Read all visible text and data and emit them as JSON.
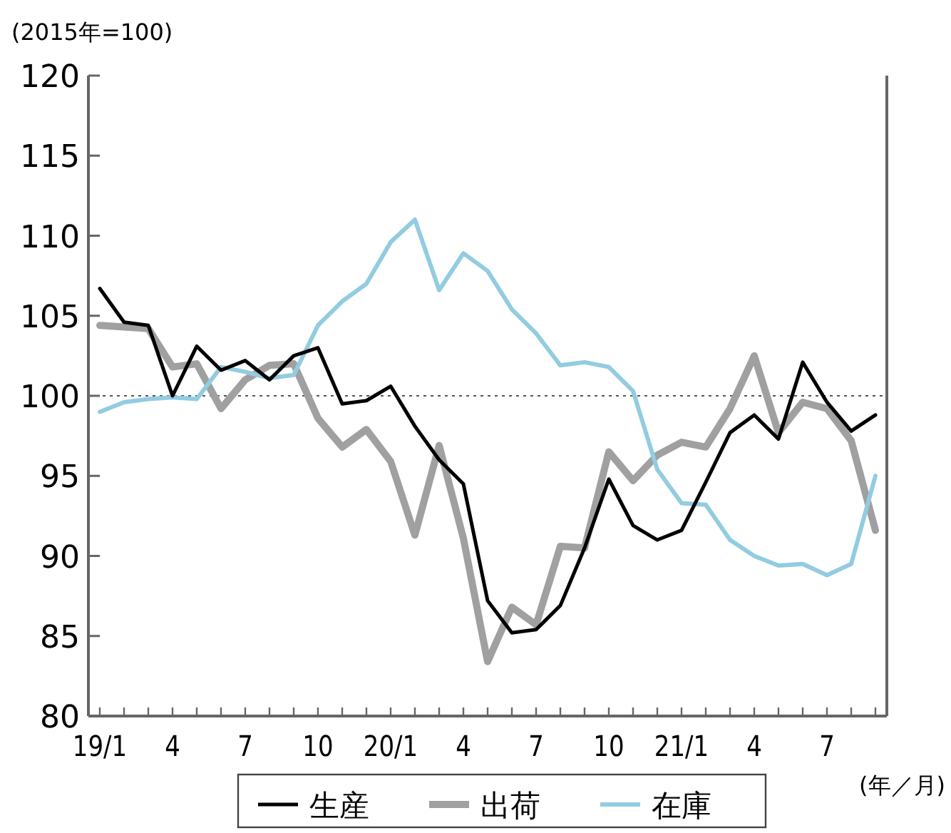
{
  "chart_data": {
    "type": "line",
    "ylabel": "(2015年=100)",
    "xlabel": "(年／月)",
    "categories": [
      "19/1",
      null,
      null,
      "4",
      null,
      null,
      "7",
      null,
      null,
      "10",
      null,
      null,
      "20/1",
      null,
      null,
      "4",
      null,
      null,
      "7",
      null,
      null,
      "10",
      null,
      null,
      "21/1",
      null,
      null,
      "4",
      null,
      null,
      "7",
      null,
      null
    ],
    "series": [
      {
        "name": "生産",
        "color": "#000000",
        "values": [
          106.7,
          104.6,
          104.4,
          100.0,
          103.1,
          101.6,
          102.2,
          101.0,
          102.5,
          103.0,
          99.5,
          99.7,
          100.6,
          98.1,
          96.0,
          94.5,
          87.2,
          85.2,
          85.4,
          86.9,
          90.5,
          94.8,
          91.9,
          91.0,
          91.6,
          94.6,
          97.7,
          98.8,
          97.3,
          102.1,
          99.6,
          97.8,
          98.8
        ]
      },
      {
        "name": "出荷",
        "color": "#a0a0a0",
        "values": [
          104.4,
          104.3,
          104.2,
          101.8,
          102.0,
          99.2,
          101.0,
          101.9,
          102.0,
          98.6,
          96.8,
          97.9,
          95.9,
          91.3,
          96.9,
          91.1,
          83.4,
          86.8,
          85.7,
          90.6,
          90.5,
          96.5,
          94.7,
          96.3,
          97.1,
          96.8,
          99.2,
          102.5,
          97.7,
          99.6,
          99.2,
          97.2,
          91.6
        ]
      },
      {
        "name": "在庫",
        "color": "#92cce0",
        "values": [
          99.0,
          99.6,
          99.8,
          99.9,
          99.8,
          101.8,
          101.5,
          101.1,
          101.3,
          104.4,
          105.9,
          107.0,
          109.6,
          111.0,
          106.6,
          108.9,
          107.8,
          105.4,
          103.9,
          101.9,
          102.1,
          101.8,
          100.3,
          95.4,
          93.3,
          93.2,
          91.0,
          90.0,
          89.4,
          89.5,
          88.8,
          89.5,
          95.0
        ]
      }
    ],
    "ylim": [
      80,
      120
    ],
    "yticks": [
      80,
      85,
      90,
      95,
      100,
      105,
      110,
      115,
      120
    ],
    "ref_lines": [
      {
        "axis": "y",
        "value": 100,
        "color": "#555555",
        "line_style": "dotted"
      }
    ],
    "legend": "bottom",
    "grid": false
  }
}
